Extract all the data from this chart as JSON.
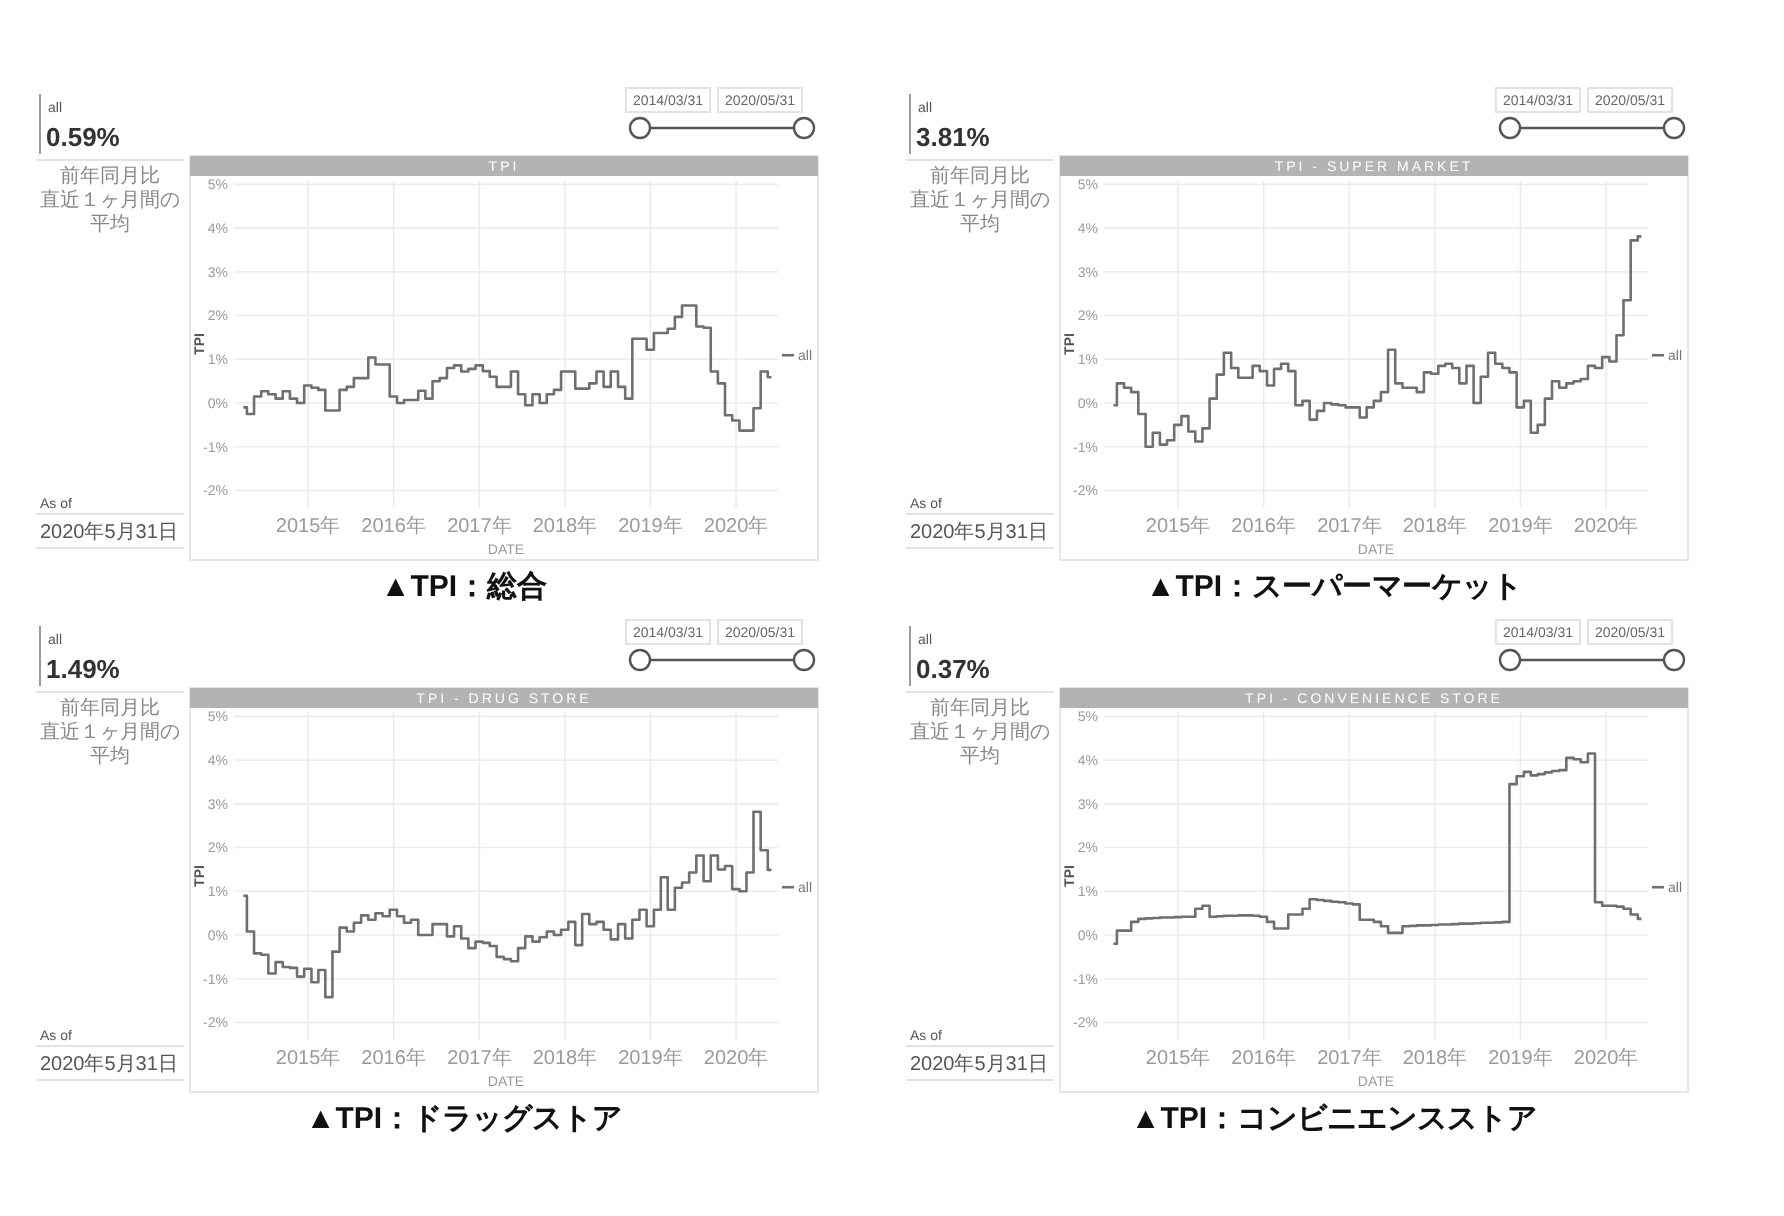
{
  "chart_data": [
    {
      "type": "step",
      "title": "TPI",
      "xlabel": "DATE",
      "ylabel": "TPI",
      "xlim": [
        "2014-02-19",
        "2020-06-28"
      ],
      "ylim": [
        -2.4,
        5.1
      ],
      "xticks": [
        {
          "value": "2015",
          "label": "2015年"
        },
        {
          "value": "2016",
          "label": "2016年"
        },
        {
          "value": "2017",
          "label": "2017年"
        },
        {
          "value": "2018",
          "label": "2018年"
        },
        {
          "value": "2019",
          "label": "2019年"
        },
        {
          "value": "2020",
          "label": "2020年"
        }
      ],
      "yticks": [
        {
          "value": 5,
          "label": "5%"
        },
        {
          "value": 4,
          "label": "4%"
        },
        {
          "value": 3,
          "label": "3%"
        },
        {
          "value": 2,
          "label": "2%"
        },
        {
          "value": 1,
          "label": "1%"
        },
        {
          "value": 0,
          "label": "0%"
        },
        {
          "value": -1,
          "label": "-1%"
        },
        {
          "value": -2,
          "label": "-2%"
        }
      ],
      "grid": true,
      "legend": "right",
      "x": [
        "2014-03-31",
        "2014-04-30",
        "2014-05-31",
        "2014-06-30",
        "2014-07-31",
        "2014-08-31",
        "2014-09-30",
        "2014-10-31",
        "2014-11-30",
        "2014-12-31",
        "2015-01-31",
        "2015-02-28",
        "2015-03-31",
        "2015-04-30",
        "2015-05-31",
        "2015-06-30",
        "2015-07-31",
        "2015-08-31",
        "2015-09-30",
        "2015-10-31",
        "2015-11-30",
        "2015-12-31",
        "2016-01-31",
        "2016-02-29",
        "2016-03-31",
        "2016-04-30",
        "2016-05-31",
        "2016-06-30",
        "2016-07-31",
        "2016-08-31",
        "2016-09-30",
        "2016-10-31",
        "2016-11-30",
        "2016-12-31",
        "2017-01-31",
        "2017-02-28",
        "2017-03-31",
        "2017-04-30",
        "2017-05-31",
        "2017-06-30",
        "2017-07-31",
        "2017-08-31",
        "2017-09-30",
        "2017-10-31",
        "2017-11-30",
        "2017-12-31",
        "2018-01-31",
        "2018-02-28",
        "2018-03-31",
        "2018-04-30",
        "2018-05-31",
        "2018-06-30",
        "2018-07-31",
        "2018-08-31",
        "2018-09-30",
        "2018-10-31",
        "2018-11-30",
        "2018-12-31",
        "2019-01-31",
        "2019-02-28",
        "2019-03-31",
        "2019-04-30",
        "2019-05-31",
        "2019-06-30",
        "2019-07-31",
        "2019-08-31",
        "2019-09-30",
        "2019-10-31",
        "2019-11-30",
        "2019-12-31",
        "2020-01-31",
        "2020-02-29",
        "2020-03-31",
        "2020-04-30",
        "2020-05-31"
      ],
      "series": [
        {
          "name": "all",
          "color": "#6f6f6f",
          "values": [
            -0.1,
            -0.25,
            0.15,
            0.27,
            0.2,
            0.1,
            0.27,
            0.1,
            0.0,
            0.4,
            0.35,
            0.3,
            -0.17,
            -0.17,
            0.3,
            0.37,
            0.57,
            0.57,
            1.04,
            0.88,
            0.88,
            0.15,
            0.0,
            0.07,
            0.07,
            0.28,
            0.1,
            0.5,
            0.57,
            0.8,
            0.86,
            0.72,
            0.78,
            0.86,
            0.73,
            0.6,
            0.37,
            0.37,
            0.72,
            0.2,
            -0.05,
            0.2,
            0.0,
            0.2,
            0.3,
            0.72,
            0.72,
            0.33,
            0.33,
            0.45,
            0.72,
            0.37,
            0.72,
            0.37,
            0.1,
            1.47,
            1.47,
            1.22,
            1.6,
            1.6,
            1.7,
            1.97,
            2.23,
            2.23,
            1.75,
            1.72,
            0.72,
            0.45,
            -0.28,
            -0.4,
            -0.63,
            -0.63,
            -0.12,
            0.72,
            0.59
          ]
        }
      ],
      "annotations": [
        "all",
        "0.59%",
        "前年同月比",
        "直近１ヶ月間の平均",
        "2014/03/31",
        "2020/05/31",
        "As of",
        "2020年5月31日",
        "▲TPI：総合"
      ]
    },
    {
      "type": "step",
      "title": "TPI - SUPER MARKET",
      "xlabel": "DATE",
      "ylabel": "TPI",
      "xlim": [
        "2014-02-19",
        "2020-06-28"
      ],
      "ylim": [
        -2.4,
        5.1
      ],
      "xticks": [
        {
          "value": "2015",
          "label": "2015年"
        },
        {
          "value": "2016",
          "label": "2016年"
        },
        {
          "value": "2017",
          "label": "2017年"
        },
        {
          "value": "2018",
          "label": "2018年"
        },
        {
          "value": "2019",
          "label": "2019年"
        },
        {
          "value": "2020",
          "label": "2020年"
        }
      ],
      "yticks": [
        {
          "value": 5,
          "label": "5%"
        },
        {
          "value": 4,
          "label": "4%"
        },
        {
          "value": 3,
          "label": "3%"
        },
        {
          "value": 2,
          "label": "2%"
        },
        {
          "value": 1,
          "label": "1%"
        },
        {
          "value": 0,
          "label": "0%"
        },
        {
          "value": -1,
          "label": "-1%"
        },
        {
          "value": -2,
          "label": "-2%"
        }
      ],
      "grid": true,
      "legend": "right",
      "x": [
        "2014-03-31",
        "2014-04-30",
        "2014-05-31",
        "2014-06-30",
        "2014-07-31",
        "2014-08-31",
        "2014-09-30",
        "2014-10-31",
        "2014-11-30",
        "2014-12-31",
        "2015-01-31",
        "2015-02-28",
        "2015-03-31",
        "2015-04-30",
        "2015-05-31",
        "2015-06-30",
        "2015-07-31",
        "2015-08-31",
        "2015-09-30",
        "2015-10-31",
        "2015-11-30",
        "2015-12-31",
        "2016-01-31",
        "2016-02-29",
        "2016-03-31",
        "2016-04-30",
        "2016-05-31",
        "2016-06-30",
        "2016-07-31",
        "2016-08-31",
        "2016-09-30",
        "2016-10-31",
        "2016-11-30",
        "2016-12-31",
        "2017-01-31",
        "2017-02-28",
        "2017-03-31",
        "2017-04-30",
        "2017-05-31",
        "2017-06-30",
        "2017-07-31",
        "2017-08-31",
        "2017-09-30",
        "2017-10-31",
        "2017-11-30",
        "2017-12-31",
        "2018-01-31",
        "2018-02-28",
        "2018-03-31",
        "2018-04-30",
        "2018-05-31",
        "2018-06-30",
        "2018-07-31",
        "2018-08-31",
        "2018-09-30",
        "2018-10-31",
        "2018-11-30",
        "2018-12-31",
        "2019-01-31",
        "2019-02-28",
        "2019-03-31",
        "2019-04-30",
        "2019-05-31",
        "2019-06-30",
        "2019-07-31",
        "2019-08-31",
        "2019-09-30",
        "2019-10-31",
        "2019-11-30",
        "2019-12-31",
        "2020-01-31",
        "2020-02-29",
        "2020-03-31",
        "2020-04-30",
        "2020-05-31"
      ],
      "series": [
        {
          "name": "all",
          "color": "#6f6f6f",
          "values": [
            -0.05,
            0.45,
            0.35,
            0.25,
            -0.25,
            -1.0,
            -0.68,
            -0.95,
            -0.85,
            -0.5,
            -0.3,
            -0.65,
            -0.88,
            -0.58,
            0.1,
            0.65,
            1.15,
            0.8,
            0.58,
            0.58,
            0.85,
            0.73,
            0.4,
            0.78,
            0.9,
            0.73,
            -0.05,
            0.05,
            -0.38,
            -0.18,
            0.0,
            -0.03,
            -0.05,
            -0.1,
            -0.1,
            -0.33,
            -0.1,
            0.05,
            0.25,
            1.22,
            0.45,
            0.35,
            0.35,
            0.25,
            0.7,
            0.67,
            0.85,
            0.9,
            0.8,
            0.45,
            0.85,
            0.0,
            0.6,
            1.15,
            0.9,
            0.8,
            0.7,
            -0.1,
            0.05,
            -0.68,
            -0.5,
            0.1,
            0.5,
            0.35,
            0.45,
            0.5,
            0.55,
            0.85,
            0.8,
            1.05,
            0.95,
            1.55,
            2.35,
            3.72,
            3.81
          ]
        }
      ],
      "annotations": [
        "all",
        "3.81%",
        "前年同月比",
        "直近１ヶ月間の平均",
        "2014/03/31",
        "2020/05/31",
        "As of",
        "2020年5月31日",
        "▲TPI：スーパーマーケット"
      ]
    },
    {
      "type": "step",
      "title": "TPI - DRUG STORE",
      "xlabel": "DATE",
      "ylabel": "TPI",
      "xlim": [
        "2014-02-19",
        "2020-06-28"
      ],
      "ylim": [
        -2.4,
        5.1
      ],
      "xticks": [
        {
          "value": "2015",
          "label": "2015年"
        },
        {
          "value": "2016",
          "label": "2016年"
        },
        {
          "value": "2017",
          "label": "2017年"
        },
        {
          "value": "2018",
          "label": "2018年"
        },
        {
          "value": "2019",
          "label": "2019年"
        },
        {
          "value": "2020",
          "label": "2020年"
        }
      ],
      "yticks": [
        {
          "value": 5,
          "label": "5%"
        },
        {
          "value": 4,
          "label": "4%"
        },
        {
          "value": 3,
          "label": "3%"
        },
        {
          "value": 2,
          "label": "2%"
        },
        {
          "value": 1,
          "label": "1%"
        },
        {
          "value": 0,
          "label": "0%"
        },
        {
          "value": -1,
          "label": "-1%"
        },
        {
          "value": -2,
          "label": "-2%"
        }
      ],
      "grid": true,
      "legend": "right",
      "x": [
        "2014-03-31",
        "2014-04-30",
        "2014-05-31",
        "2014-06-30",
        "2014-07-31",
        "2014-08-31",
        "2014-09-30",
        "2014-10-31",
        "2014-11-30",
        "2014-12-31",
        "2015-01-31",
        "2015-02-28",
        "2015-03-31",
        "2015-04-30",
        "2015-05-31",
        "2015-06-30",
        "2015-07-31",
        "2015-08-31",
        "2015-09-30",
        "2015-10-31",
        "2015-11-30",
        "2015-12-31",
        "2016-01-31",
        "2016-02-29",
        "2016-03-31",
        "2016-04-30",
        "2016-05-31",
        "2016-06-30",
        "2016-07-31",
        "2016-08-31",
        "2016-09-30",
        "2016-10-31",
        "2016-11-30",
        "2016-12-31",
        "2017-01-31",
        "2017-02-28",
        "2017-03-31",
        "2017-04-30",
        "2017-05-31",
        "2017-06-30",
        "2017-07-31",
        "2017-08-31",
        "2017-09-30",
        "2017-10-31",
        "2017-11-30",
        "2017-12-31",
        "2018-01-31",
        "2018-02-28",
        "2018-03-31",
        "2018-04-30",
        "2018-05-31",
        "2018-06-30",
        "2018-07-31",
        "2018-08-31",
        "2018-09-30",
        "2018-10-31",
        "2018-11-30",
        "2018-12-31",
        "2019-01-31",
        "2019-02-28",
        "2019-03-31",
        "2019-04-30",
        "2019-05-31",
        "2019-06-30",
        "2019-07-31",
        "2019-08-31",
        "2019-09-30",
        "2019-10-31",
        "2019-11-30",
        "2019-12-31",
        "2020-01-31",
        "2020-02-29",
        "2020-03-31",
        "2020-04-30",
        "2020-05-31"
      ],
      "series": [
        {
          "name": "all",
          "color": "#6f6f6f",
          "values": [
            0.9,
            0.08,
            -0.42,
            -0.45,
            -0.88,
            -0.62,
            -0.73,
            -0.75,
            -0.95,
            -0.77,
            -1.08,
            -0.8,
            -1.42,
            -0.38,
            0.17,
            0.08,
            0.28,
            0.45,
            0.35,
            0.5,
            0.43,
            0.58,
            0.43,
            0.28,
            0.35,
            0.0,
            0.0,
            0.25,
            0.25,
            -0.03,
            0.2,
            -0.08,
            -0.3,
            -0.15,
            -0.18,
            -0.25,
            -0.5,
            -0.55,
            -0.6,
            -0.3,
            -0.03,
            -0.15,
            -0.05,
            0.08,
            0.0,
            0.12,
            0.3,
            -0.23,
            0.48,
            0.25,
            0.3,
            0.12,
            -0.1,
            0.25,
            -0.08,
            0.35,
            0.58,
            0.2,
            0.58,
            1.32,
            0.58,
            1.08,
            1.2,
            1.43,
            1.82,
            1.23,
            1.82,
            1.5,
            1.58,
            1.05,
            1.0,
            1.43,
            2.82,
            1.94,
            1.49
          ]
        }
      ],
      "annotations": [
        "all",
        "1.49%",
        "前年同月比",
        "直近１ヶ月間の平均",
        "2014/03/31",
        "2020/05/31",
        "As of",
        "2020年5月31日",
        "▲TPI：ドラッグストア"
      ]
    },
    {
      "type": "step",
      "title": "TPI - CONVENIENCE STORE",
      "xlabel": "DATE",
      "ylabel": "TPI",
      "xlim": [
        "2014-02-19",
        "2020-06-28"
      ],
      "ylim": [
        -2.4,
        5.1
      ],
      "xticks": [
        {
          "value": "2015",
          "label": "2015年"
        },
        {
          "value": "2016",
          "label": "2016年"
        },
        {
          "value": "2017",
          "label": "2017年"
        },
        {
          "value": "2018",
          "label": "2018年"
        },
        {
          "value": "2019",
          "label": "2019年"
        },
        {
          "value": "2020",
          "label": "2020年"
        }
      ],
      "yticks": [
        {
          "value": 5,
          "label": "5%"
        },
        {
          "value": 4,
          "label": "4%"
        },
        {
          "value": 3,
          "label": "3%"
        },
        {
          "value": 2,
          "label": "2%"
        },
        {
          "value": 1,
          "label": "1%"
        },
        {
          "value": 0,
          "label": "0%"
        },
        {
          "value": -1,
          "label": "-1%"
        },
        {
          "value": -2,
          "label": "-2%"
        }
      ],
      "grid": true,
      "legend": "right",
      "x": [
        "2014-03-31",
        "2014-04-30",
        "2014-05-31",
        "2014-06-30",
        "2014-07-31",
        "2014-08-31",
        "2014-09-30",
        "2014-10-31",
        "2014-11-30",
        "2014-12-31",
        "2015-01-31",
        "2015-02-28",
        "2015-03-31",
        "2015-04-30",
        "2015-05-31",
        "2015-06-30",
        "2015-07-31",
        "2015-08-31",
        "2015-09-30",
        "2015-10-31",
        "2015-11-30",
        "2015-12-31",
        "2016-01-31",
        "2016-02-29",
        "2016-03-31",
        "2016-04-30",
        "2016-05-31",
        "2016-06-30",
        "2016-07-31",
        "2016-08-31",
        "2016-09-30",
        "2016-10-31",
        "2016-11-30",
        "2016-12-31",
        "2017-01-31",
        "2017-02-28",
        "2017-03-31",
        "2017-04-30",
        "2017-05-31",
        "2017-06-30",
        "2017-07-31",
        "2017-08-31",
        "2017-09-30",
        "2017-10-31",
        "2017-11-30",
        "2017-12-31",
        "2018-01-31",
        "2018-02-28",
        "2018-03-31",
        "2018-04-30",
        "2018-05-31",
        "2018-06-30",
        "2018-07-31",
        "2018-08-31",
        "2018-09-30",
        "2018-10-31",
        "2018-11-30",
        "2018-12-31",
        "2019-01-31",
        "2019-02-28",
        "2019-03-31",
        "2019-04-30",
        "2019-05-31",
        "2019-06-30",
        "2019-07-31",
        "2019-08-31",
        "2019-09-30",
        "2019-10-31",
        "2019-11-30",
        "2019-12-31",
        "2020-01-31",
        "2020-02-29",
        "2020-03-31",
        "2020-04-30",
        "2020-05-31"
      ],
      "series": [
        {
          "name": "all",
          "color": "#6f6f6f",
          "values": [
            -0.2,
            0.1,
            0.1,
            0.3,
            0.37,
            0.38,
            0.39,
            0.4,
            0.4,
            0.41,
            0.42,
            0.42,
            0.6,
            0.67,
            0.42,
            0.43,
            0.44,
            0.44,
            0.45,
            0.45,
            0.44,
            0.42,
            0.3,
            0.15,
            0.15,
            0.47,
            0.47,
            0.6,
            0.82,
            0.8,
            0.78,
            0.76,
            0.75,
            0.72,
            0.7,
            0.35,
            0.35,
            0.3,
            0.2,
            0.05,
            0.05,
            0.2,
            0.21,
            0.22,
            0.22,
            0.23,
            0.24,
            0.24,
            0.25,
            0.26,
            0.26,
            0.27,
            0.28,
            0.28,
            0.29,
            0.3,
            3.45,
            3.63,
            3.73,
            3.65,
            3.68,
            3.72,
            3.75,
            3.77,
            4.05,
            4.02,
            3.95,
            4.15,
            0.75,
            0.67,
            0.67,
            0.65,
            0.6,
            0.47,
            0.37
          ]
        }
      ],
      "annotations": [
        "all",
        "0.37%",
        "前年同月比",
        "直近１ヶ月間の平均",
        "2014/03/31",
        "2020/05/31",
        "As of",
        "2020年5月31日",
        "▲TPI：コンビニエンスストア"
      ]
    }
  ]
}
